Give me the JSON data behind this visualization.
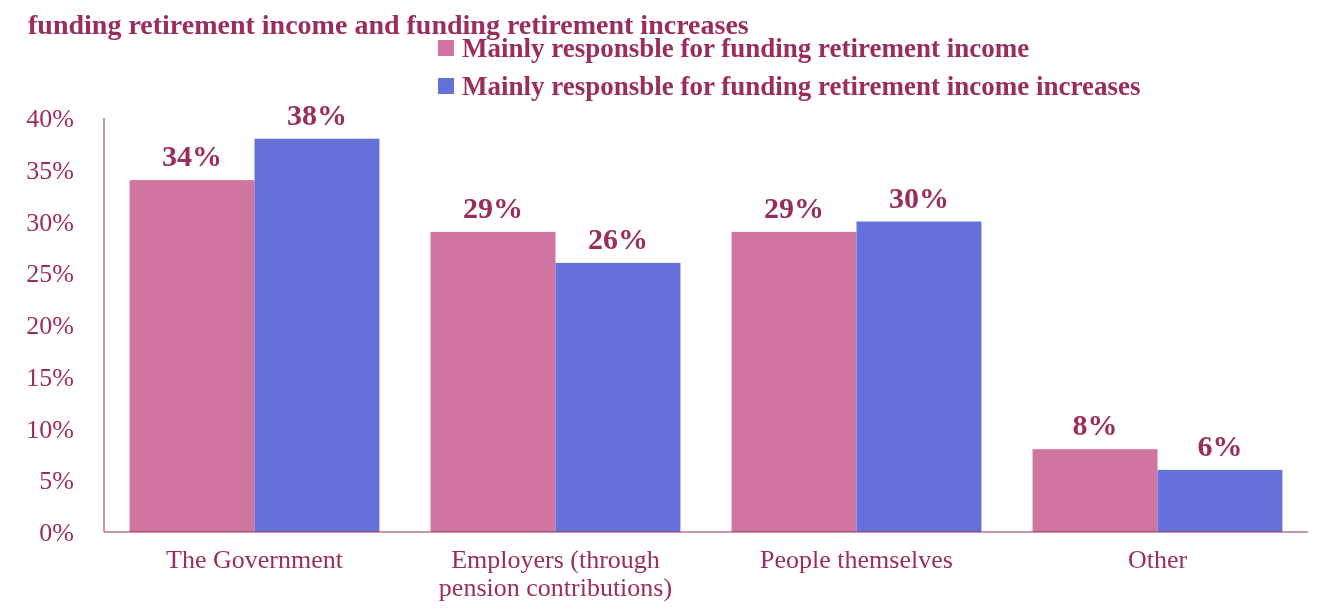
{
  "chart_data": {
    "type": "bar",
    "title": "funding retirement income and funding retirement increases",
    "categories": [
      "The Government",
      "Employers (through pension contributions)",
      "People themselves",
      "Other"
    ],
    "series": [
      {
        "name": "Mainly responsble for funding retirement income",
        "color": "#d075a0",
        "values": [
          34,
          29,
          29,
          8
        ],
        "value_labels": [
          "34%",
          "29%",
          "29%",
          "8%"
        ]
      },
      {
        "name": "Mainly responsble for funding retirement income increases",
        "color": "#6471d9",
        "values": [
          38,
          26,
          30,
          6
        ],
        "value_labels": [
          "38%",
          "26%",
          "30%",
          "6%"
        ]
      }
    ],
    "ylim": [
      0,
      40
    ],
    "yticks": [
      {
        "value": 0,
        "label": "0%"
      },
      {
        "value": 5,
        "label": "5%"
      },
      {
        "value": 10,
        "label": "10%"
      },
      {
        "value": 15,
        "label": "15%"
      },
      {
        "value": 20,
        "label": "20%"
      },
      {
        "value": 25,
        "label": "25%"
      },
      {
        "value": 30,
        "label": "30%"
      },
      {
        "value": 35,
        "label": "35%"
      },
      {
        "value": 40,
        "label": "40%"
      }
    ],
    "legend": "top right",
    "grid": false
  }
}
